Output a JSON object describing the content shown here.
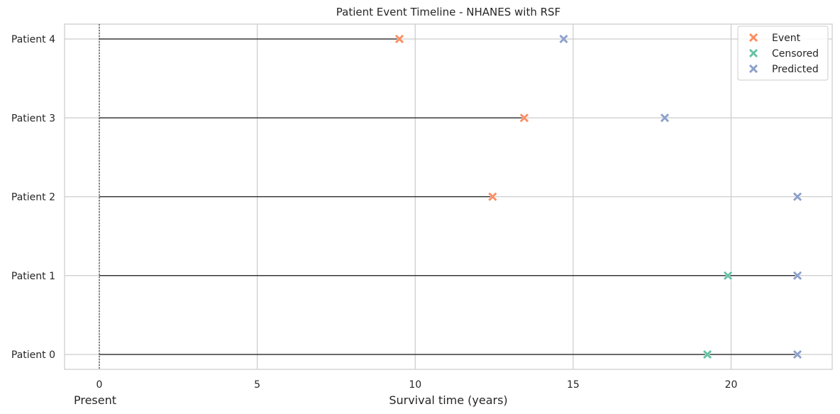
{
  "chart_data": {
    "type": "scatter",
    "title": "Patient Event Timeline - NHANES with RSF",
    "xlabel": "Survival time (years)",
    "present_label": "Present",
    "xlim": [
      -1.1,
      23.2
    ],
    "xticks": [
      0,
      5,
      10,
      15,
      20
    ],
    "grid": true,
    "legend_position": "top-right",
    "colors": {
      "Event": "#fc8d62",
      "Censored": "#66c2a5",
      "Predicted": "#8da0cb",
      "line": "#1a1a1a",
      "grid": "#cccccc"
    },
    "categories": [
      "Patient 0",
      "Patient 1",
      "Patient 2",
      "Patient 3",
      "Patient 4"
    ],
    "series": [
      {
        "name": "Event",
        "points": [
          {
            "patient": "Patient 2",
            "x": 12.45
          },
          {
            "patient": "Patient 3",
            "x": 13.45
          },
          {
            "patient": "Patient 4",
            "x": 9.5
          }
        ]
      },
      {
        "name": "Censored",
        "points": [
          {
            "patient": "Patient 0",
            "x": 19.25
          },
          {
            "patient": "Patient 1",
            "x": 19.9
          }
        ]
      },
      {
        "name": "Predicted",
        "points": [
          {
            "patient": "Patient 0",
            "x": 22.1
          },
          {
            "patient": "Patient 1",
            "x": 22.1
          },
          {
            "patient": "Patient 2",
            "x": 22.1
          },
          {
            "patient": "Patient 3",
            "x": 17.9
          },
          {
            "patient": "Patient 4",
            "x": 14.7
          }
        ]
      }
    ],
    "timelines": [
      {
        "patient": "Patient 0",
        "start": 0,
        "end": 22.1
      },
      {
        "patient": "Patient 1",
        "start": 0,
        "end": 22.1
      },
      {
        "patient": "Patient 2",
        "start": 0,
        "end": 12.45
      },
      {
        "patient": "Patient 3",
        "start": 0,
        "end": 13.45
      },
      {
        "patient": "Patient 4",
        "start": 0,
        "end": 9.5
      }
    ],
    "legend": [
      "Event",
      "Censored",
      "Predicted"
    ]
  }
}
